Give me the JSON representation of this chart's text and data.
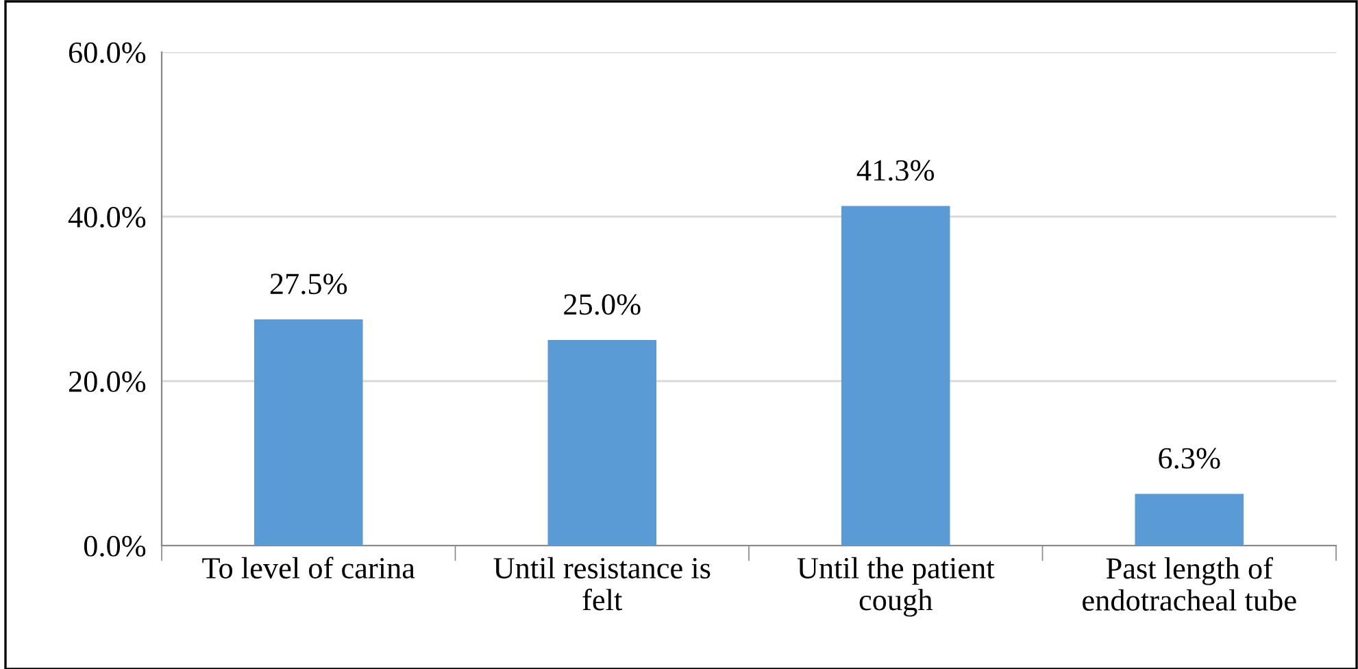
{
  "chart_data": {
    "type": "bar",
    "categories": [
      "To level of carina",
      "Until resistance is\nfelt",
      "Until the patient\ncough",
      "Past length of\nendotracheal tube"
    ],
    "values": [
      27.5,
      25.0,
      41.3,
      6.3
    ],
    "value_labels": [
      "27.5%",
      "25.0%",
      "41.3%",
      "6.3%"
    ],
    "color": "#5b9bd5",
    "ylim": [
      0,
      60
    ],
    "yticks": [
      {
        "value": 0,
        "label": "0.0%"
      },
      {
        "value": 20,
        "label": "20.0%"
      },
      {
        "value": 40,
        "label": "40.0%"
      },
      {
        "value": 60,
        "label": "60.0%"
      }
    ],
    "grid": "y"
  }
}
